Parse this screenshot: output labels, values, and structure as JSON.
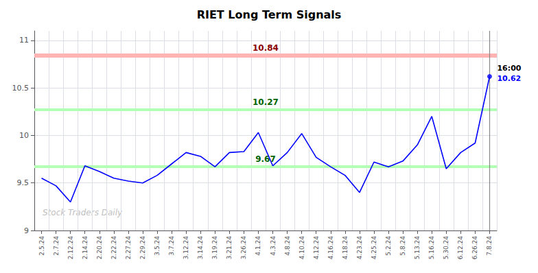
{
  "chart_data": {
    "type": "line",
    "title": "RIET Long Term Signals",
    "categories": [
      "2.5.24",
      "2.7.24",
      "2.12.24",
      "2.14.24",
      "2.20.24",
      "2.22.24",
      "2.27.24",
      "2.29.24",
      "3.5.24",
      "3.7.24",
      "3.12.24",
      "3.14.24",
      "3.19.24",
      "3.21.24",
      "3.26.24",
      "4.1.24",
      "4.3.24",
      "4.8.24",
      "4.10.24",
      "4.12.24",
      "4.16.24",
      "4.18.24",
      "4.23.24",
      "4.25.24",
      "5.2.24",
      "5.8.24",
      "5.13.24",
      "5.16.24",
      "5.30.24",
      "6.12.24",
      "6.26.24",
      "7.8.24"
    ],
    "values": [
      9.55,
      9.47,
      9.3,
      9.68,
      9.62,
      9.55,
      9.52,
      9.5,
      9.58,
      9.7,
      9.82,
      9.78,
      9.67,
      9.82,
      9.83,
      10.03,
      9.68,
      9.82,
      10.02,
      9.77,
      9.67,
      9.58,
      9.4,
      9.72,
      9.67,
      9.73,
      9.9,
      10.2,
      9.65,
      9.82,
      9.92,
      10.62
    ],
    "color": "blue",
    "ylim": [
      9.0,
      11.1
    ],
    "yticks": [
      9,
      9.5,
      10,
      10.5,
      11
    ],
    "grid": true,
    "reference_lines": [
      {
        "value": 10.84,
        "color": "#ffb3b3",
        "label_color": "#8b0000"
      },
      {
        "value": 10.27,
        "color": "#b3ffb3",
        "label_color": "#006400"
      },
      {
        "value": 9.67,
        "color": "#b3ffb3",
        "label_color": "#006400"
      }
    ],
    "annotations": [
      {
        "text": "16:00",
        "x": "7.8.24",
        "y": 10.62,
        "color": "black"
      },
      {
        "text": "10.62",
        "x": "7.8.24",
        "y": 10.62,
        "color": "blue"
      }
    ],
    "watermark": {
      "text": "Stock Traders Daily",
      "color": "#c0c0c0"
    }
  }
}
